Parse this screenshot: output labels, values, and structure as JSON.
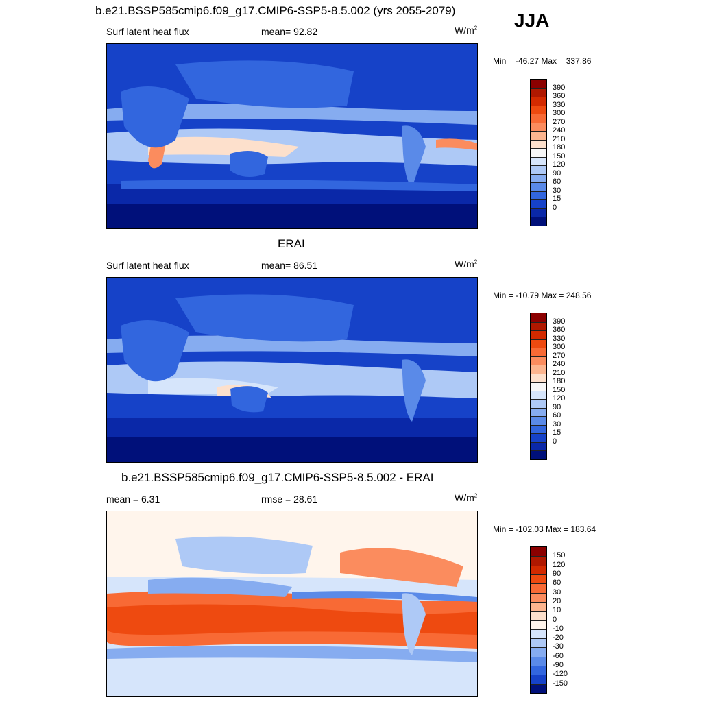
{
  "header": {
    "title": "b.e21.BSSP585cmip6.f09_g17.CMIP6-SSP5-8.5.002 (yrs 2055-2079)",
    "season": "JJA"
  },
  "panel1": {
    "variable": "Surf latent heat flux",
    "stat": "mean=  92.82",
    "units": "W/m",
    "units_exp": "2",
    "minmax": "Min = -46.27 Max = 337.86"
  },
  "panel2": {
    "heading": "ERAI",
    "variable": "Surf latent heat flux",
    "stat": "mean=  86.51",
    "units": "W/m",
    "units_exp": "2",
    "minmax": "Min = -10.79 Max = 248.56"
  },
  "panel3": {
    "heading": "b.e21.BSSP585cmip6.f09_g17.CMIP6-SSP5-8.5.002 - ERAI",
    "stat_left": "mean =   6.31",
    "stat_mid": "rmse =  28.61",
    "units": "W/m",
    "units_exp": "2",
    "minmax": "Min = -102.03 Max = 183.64"
  },
  "colorbar_abs": {
    "labels": [
      "390",
      "360",
      "330",
      "300",
      "270",
      "240",
      "210",
      "180",
      "150",
      "120",
      "90",
      "60",
      "30",
      "15",
      "0"
    ],
    "colors": [
      "#8b0000",
      "#b01800",
      "#d32a00",
      "#ee4a10",
      "#f86a35",
      "#fb8c5e",
      "#fcb58f",
      "#fde0cc",
      "#f7f7f7",
      "#d6e5fb",
      "#aec9f6",
      "#86acf0",
      "#5a8ae8",
      "#3266de",
      "#1642c8",
      "#0a28a8",
      "#00107a"
    ]
  },
  "colorbar_diff": {
    "labels": [
      "150",
      "120",
      "90",
      "60",
      "30",
      "20",
      "10",
      "0",
      "-10",
      "-20",
      "-30",
      "-60",
      "-90",
      "-120",
      "-150"
    ],
    "colors": [
      "#8b0000",
      "#b01800",
      "#d32a00",
      "#ee4a10",
      "#f86a35",
      "#fb8c5e",
      "#fcb58f",
      "#fde0cc",
      "#fff5ec",
      "#d6e5fb",
      "#aec9f6",
      "#86acf0",
      "#5a8ae8",
      "#3266de",
      "#1642c8",
      "#00107a"
    ]
  }
}
